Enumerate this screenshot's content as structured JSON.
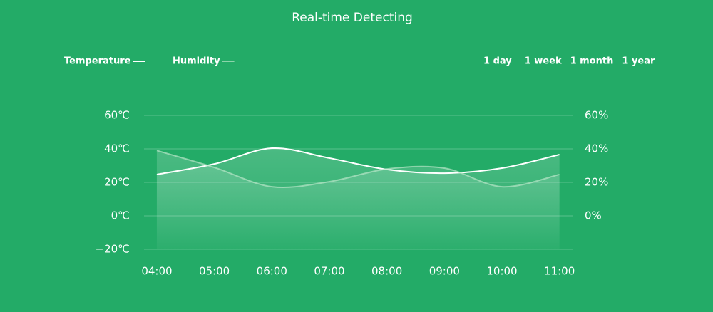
{
  "chart_data": {
    "type": "line",
    "title": "Real-time Detecting",
    "range_options": [
      "1 day",
      "1 week",
      "1 month",
      "1 year"
    ],
    "categories": [
      "04:00",
      "05:00",
      "06:00",
      "07:00",
      "08:00",
      "09:00",
      "10:00",
      "11:00"
    ],
    "series": [
      {
        "name": "Temperature",
        "color": "#ffffff",
        "values": [
          24.7,
          31,
          40.4,
          34.5,
          27.7,
          25.5,
          28.5,
          36.6
        ]
      },
      {
        "name": "Humidity",
        "color": "#b8e6c8",
        "axis": "y2",
        "values": [
          39,
          28.9,
          17.4,
          20.4,
          28,
          28.5,
          17.4,
          24.7
        ]
      }
    ],
    "ylim": [
      -20,
      60
    ],
    "yticks": [
      {
        "value": 60,
        "label": "60℃"
      },
      {
        "value": 40,
        "label": "40℃"
      },
      {
        "value": 20,
        "label": "20℃"
      },
      {
        "value": 0,
        "label": "0℃"
      },
      {
        "value": -20,
        "label": "−20℃"
      }
    ],
    "y2lim": [
      -20,
      60
    ],
    "y2ticks": [
      {
        "value": 60,
        "label": "60%"
      },
      {
        "value": 40,
        "label": "40%"
      },
      {
        "value": 20,
        "label": "20%"
      },
      {
        "value": 0,
        "label": "0%"
      }
    ],
    "grid": true
  }
}
